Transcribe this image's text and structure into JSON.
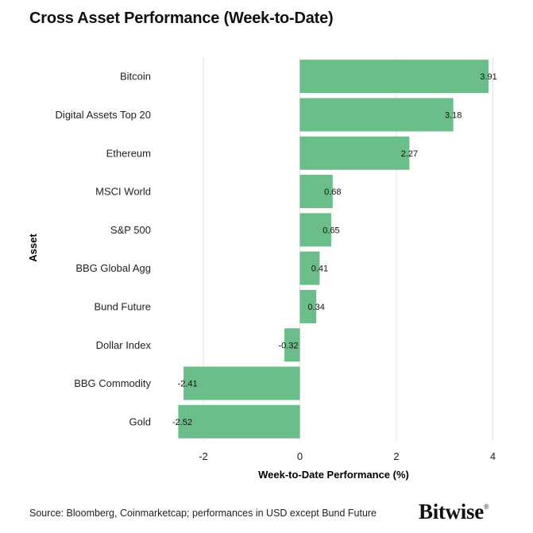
{
  "chart_data": {
    "type": "bar",
    "orientation": "horizontal",
    "title": "Cross Asset Performance (Week-to-Date)",
    "xlabel": "Week-to-Date Performance (%)",
    "ylabel": "Asset",
    "categories": [
      "Bitcoin",
      "Digital Assets Top 20",
      "Ethereum",
      "MSCI World",
      "S&P 500",
      "BBG Global Agg",
      "Bund Future",
      "Dollar Index",
      "BBG Commodity",
      "Gold"
    ],
    "values": [
      3.91,
      3.18,
      2.27,
      0.68,
      0.65,
      0.41,
      0.34,
      -0.32,
      -2.41,
      -2.52
    ],
    "value_labels": [
      "3.91",
      "3.18",
      "2.27",
      "0.68",
      "0.65",
      "0.41",
      "0.34",
      "-0.32",
      "-2.41",
      "-2.52"
    ],
    "xlim": [
      -2.9,
      4.2
    ],
    "xticks": [
      -2,
      0,
      2,
      4
    ],
    "xtick_labels": [
      "-2",
      "0",
      "2",
      "4"
    ],
    "grid": "vertical",
    "bar_color": "#6bbd8a"
  },
  "footer": {
    "source": "Source: Bloomberg, Coinmarketcap; performances in USD except Bund Future",
    "brand": "Bitwise",
    "brand_mark": "®"
  }
}
